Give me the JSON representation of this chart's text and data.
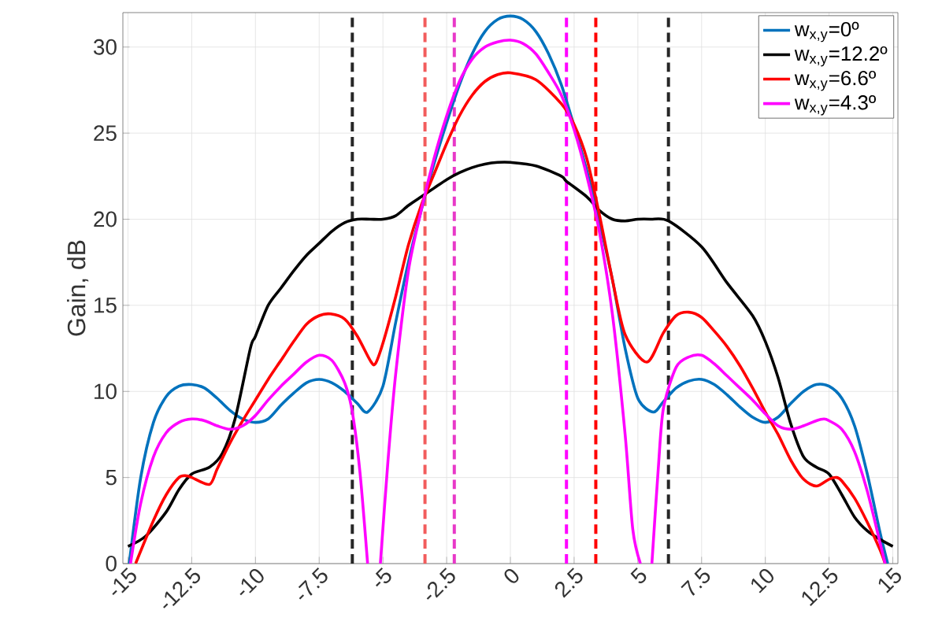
{
  "chart_data": {
    "type": "line",
    "ylabel": "Gain, dB",
    "xlim": [
      -15.2,
      15.2
    ],
    "ylim": [
      0,
      32
    ],
    "xticks": [
      -15,
      -12.5,
      -10,
      -7.5,
      -5,
      -2.5,
      0,
      2.5,
      5,
      7.5,
      10,
      12.5,
      15
    ],
    "yticks": [
      0,
      5,
      10,
      15,
      20,
      25,
      30
    ],
    "grid": true,
    "legend": "top right",
    "line_style": "solid",
    "marker": "none",
    "series": [
      {
        "name": "w$_{x,y}$=0º",
        "color": "#0072bd",
        "x": [
          -14.95,
          -14.5,
          -14,
          -13.5,
          -13,
          -12.5,
          -12,
          -11.5,
          -11,
          -10.5,
          -10,
          -9.5,
          -9,
          -8.5,
          -8,
          -7.5,
          -7,
          -6.5,
          -6,
          -5.6,
          -5,
          -4.5,
          -4,
          -3.5,
          -3,
          -2.5,
          -2,
          -1.5,
          -1,
          -0.5,
          0,
          0.5,
          1,
          1.5,
          2,
          2.5,
          3,
          3.5,
          4,
          4.5,
          5,
          5.6,
          6,
          6.5,
          7,
          7.5,
          8,
          8.5,
          9,
          9.5,
          10,
          10.5,
          11,
          11.5,
          12,
          12.5,
          13,
          13.5,
          14,
          14.5,
          14.8
        ],
        "values": [
          0,
          5,
          8.2,
          9.7,
          10.3,
          10.4,
          10.2,
          9.6,
          8.9,
          8.4,
          8.2,
          8.4,
          9.2,
          9.9,
          10.5,
          10.7,
          10.5,
          10,
          9.3,
          8.8,
          10.3,
          14,
          17.5,
          20.5,
          23.2,
          25.6,
          27.8,
          29.6,
          30.9,
          31.6,
          31.8,
          31.6,
          30.9,
          29.6,
          27.8,
          25.4,
          22.8,
          19.8,
          16.5,
          12.5,
          9.6,
          8.8,
          9.4,
          10.2,
          10.6,
          10.7,
          10.4,
          9.8,
          9.1,
          8.5,
          8.2,
          8.5,
          9.3,
          10,
          10.4,
          10.3,
          9.6,
          8,
          5.2,
          1.8,
          0
        ]
      },
      {
        "name": "w$_{x,y}$=12.2º",
        "color": "#000000",
        "x": [
          -15,
          -14.3,
          -13.5,
          -13,
          -12.5,
          -11.8,
          -11.3,
          -10.8,
          -10.2,
          -10,
          -9.5,
          -9,
          -8.5,
          -8,
          -7.5,
          -7,
          -6.5,
          -6,
          -5.5,
          -5,
          -4.5,
          -4,
          -3.5,
          -3,
          -2.5,
          -2,
          -1.5,
          -1,
          -0.5,
          0,
          1,
          2,
          2.2,
          3,
          3.5,
          4,
          4.5,
          5,
          5.5,
          6.2,
          7.5,
          8.5,
          9.5,
          10,
          10.5,
          11,
          11.5,
          12,
          12.5,
          13,
          13.5,
          14,
          14.5,
          15
        ],
        "values": [
          1,
          1.6,
          3,
          4.3,
          5.2,
          5.6,
          6.4,
          8.4,
          12.5,
          13.2,
          15,
          16,
          17,
          17.9,
          18.6,
          19.3,
          19.8,
          20,
          20,
          20,
          20.2,
          20.8,
          21.3,
          21.8,
          22.3,
          22.7,
          23,
          23.2,
          23.3,
          23.3,
          23.1,
          22.5,
          22.2,
          21.3,
          20.5,
          20,
          19.9,
          20,
          20,
          19.9,
          18.4,
          16.3,
          14.4,
          12.9,
          10.8,
          8.1,
          6.2,
          5.6,
          5.2,
          4,
          2.7,
          1.9,
          1.4,
          1
        ]
      },
      {
        "name": "w$_{x,y}$=6.6º",
        "color": "#ff0000",
        "x": [
          -14.7,
          -14,
          -13.5,
          -13,
          -12.7,
          -12.5,
          -11.8,
          -11.5,
          -11,
          -10.5,
          -10,
          -9.5,
          -9,
          -8.5,
          -8,
          -7.5,
          -7.05,
          -6.5,
          -6,
          -5.5,
          -5.3,
          -5,
          -4.5,
          -4,
          -3.5,
          -3,
          -2.5,
          -2,
          -1.5,
          -1,
          -0.5,
          0,
          1,
          2,
          2.5,
          3,
          3.5,
          4,
          4.5,
          5.35,
          6,
          6.5,
          7,
          7.5,
          8,
          8.5,
          9,
          9.5,
          10,
          10.5,
          11,
          11.5,
          12,
          12.5,
          12.8,
          13,
          13.5,
          14,
          14.5,
          14.7
        ],
        "values": [
          0,
          2.5,
          4,
          5,
          5.1,
          5,
          4.6,
          5.5,
          7,
          8.3,
          9.5,
          10.7,
          11.8,
          12.9,
          13.9,
          14.4,
          14.5,
          14.2,
          13.2,
          11.8,
          11.6,
          12.8,
          15.5,
          18.5,
          20.8,
          22.6,
          24.4,
          26,
          27.2,
          28,
          28.4,
          28.5,
          28.1,
          26.7,
          25.5,
          23.5,
          20.2,
          16.5,
          13.3,
          11.7,
          13.4,
          14.4,
          14.6,
          14.3,
          13.5,
          12.6,
          11.5,
          10.2,
          8.8,
          7.5,
          6,
          4.9,
          4.5,
          4.9,
          5,
          4.8,
          3.8,
          2.4,
          0.8,
          0
        ]
      },
      {
        "name": "w$_{x,y}$=4.3º",
        "color": "#ff00ff",
        "x": [
          -14.9,
          -14.5,
          -14,
          -13.5,
          -13,
          -12.5,
          -12,
          -11.5,
          -11,
          -10.5,
          -10,
          -9.5,
          -9,
          -8.5,
          -8,
          -7.5,
          -7,
          -6.5,
          -6.2,
          -5.9,
          -5.6,
          -5.35,
          -5.1,
          -4.8,
          -4.5,
          -4,
          -3.5,
          -3,
          -2.5,
          -2,
          -1.5,
          -1,
          -0.5,
          0,
          0.5,
          1,
          1.5,
          2,
          2.5,
          3,
          3.5,
          4,
          4.5,
          4.8,
          5.1,
          5.3,
          5.55,
          5.8,
          6,
          6.5,
          7,
          7.5,
          8,
          8.5,
          9,
          9.5,
          10,
          10.5,
          11,
          11.5,
          12,
          12.3,
          12.5,
          13,
          13.5,
          14,
          14.5,
          14.7
        ],
        "values": [
          0,
          3.5,
          6.2,
          7.6,
          8.2,
          8.4,
          8.3,
          8,
          7.8,
          8,
          8.6,
          9.5,
          10.3,
          11,
          11.7,
          12.1,
          11.8,
          10.5,
          8.8,
          5.3,
          0,
          null,
          0,
          6,
          11,
          17,
          20.5,
          23.5,
          26,
          28,
          29.3,
          30,
          30.3,
          30.4,
          30.2,
          29.6,
          28.5,
          27.2,
          25.2,
          22.5,
          19.2,
          14.5,
          7.5,
          2,
          0,
          null,
          0,
          5.5,
          9,
          11.4,
          12,
          12.1,
          11.6,
          10.9,
          10.2,
          9.5,
          8.7,
          8,
          7.8,
          8,
          8.3,
          8.4,
          8.3,
          7.8,
          6.5,
          4.2,
          1.2,
          0
        ]
      }
    ],
    "ref_lines": [
      {
        "axis": "x",
        "value": -6.2,
        "color": "#262626",
        "line_style": "dashed"
      },
      {
        "axis": "x",
        "value": 6.2,
        "color": "#262626",
        "line_style": "dashed"
      },
      {
        "axis": "x",
        "value": -3.35,
        "color": "#f25c5c",
        "line_style": "dashed"
      },
      {
        "axis": "x",
        "value": 3.35,
        "color": "#ff0000",
        "line_style": "dashed"
      },
      {
        "axis": "x",
        "value": -2.2,
        "color": "#e838c8",
        "line_style": "dashed"
      },
      {
        "axis": "x",
        "value": 2.2,
        "color": "#ff00ff",
        "line_style": "dashed"
      }
    ]
  }
}
